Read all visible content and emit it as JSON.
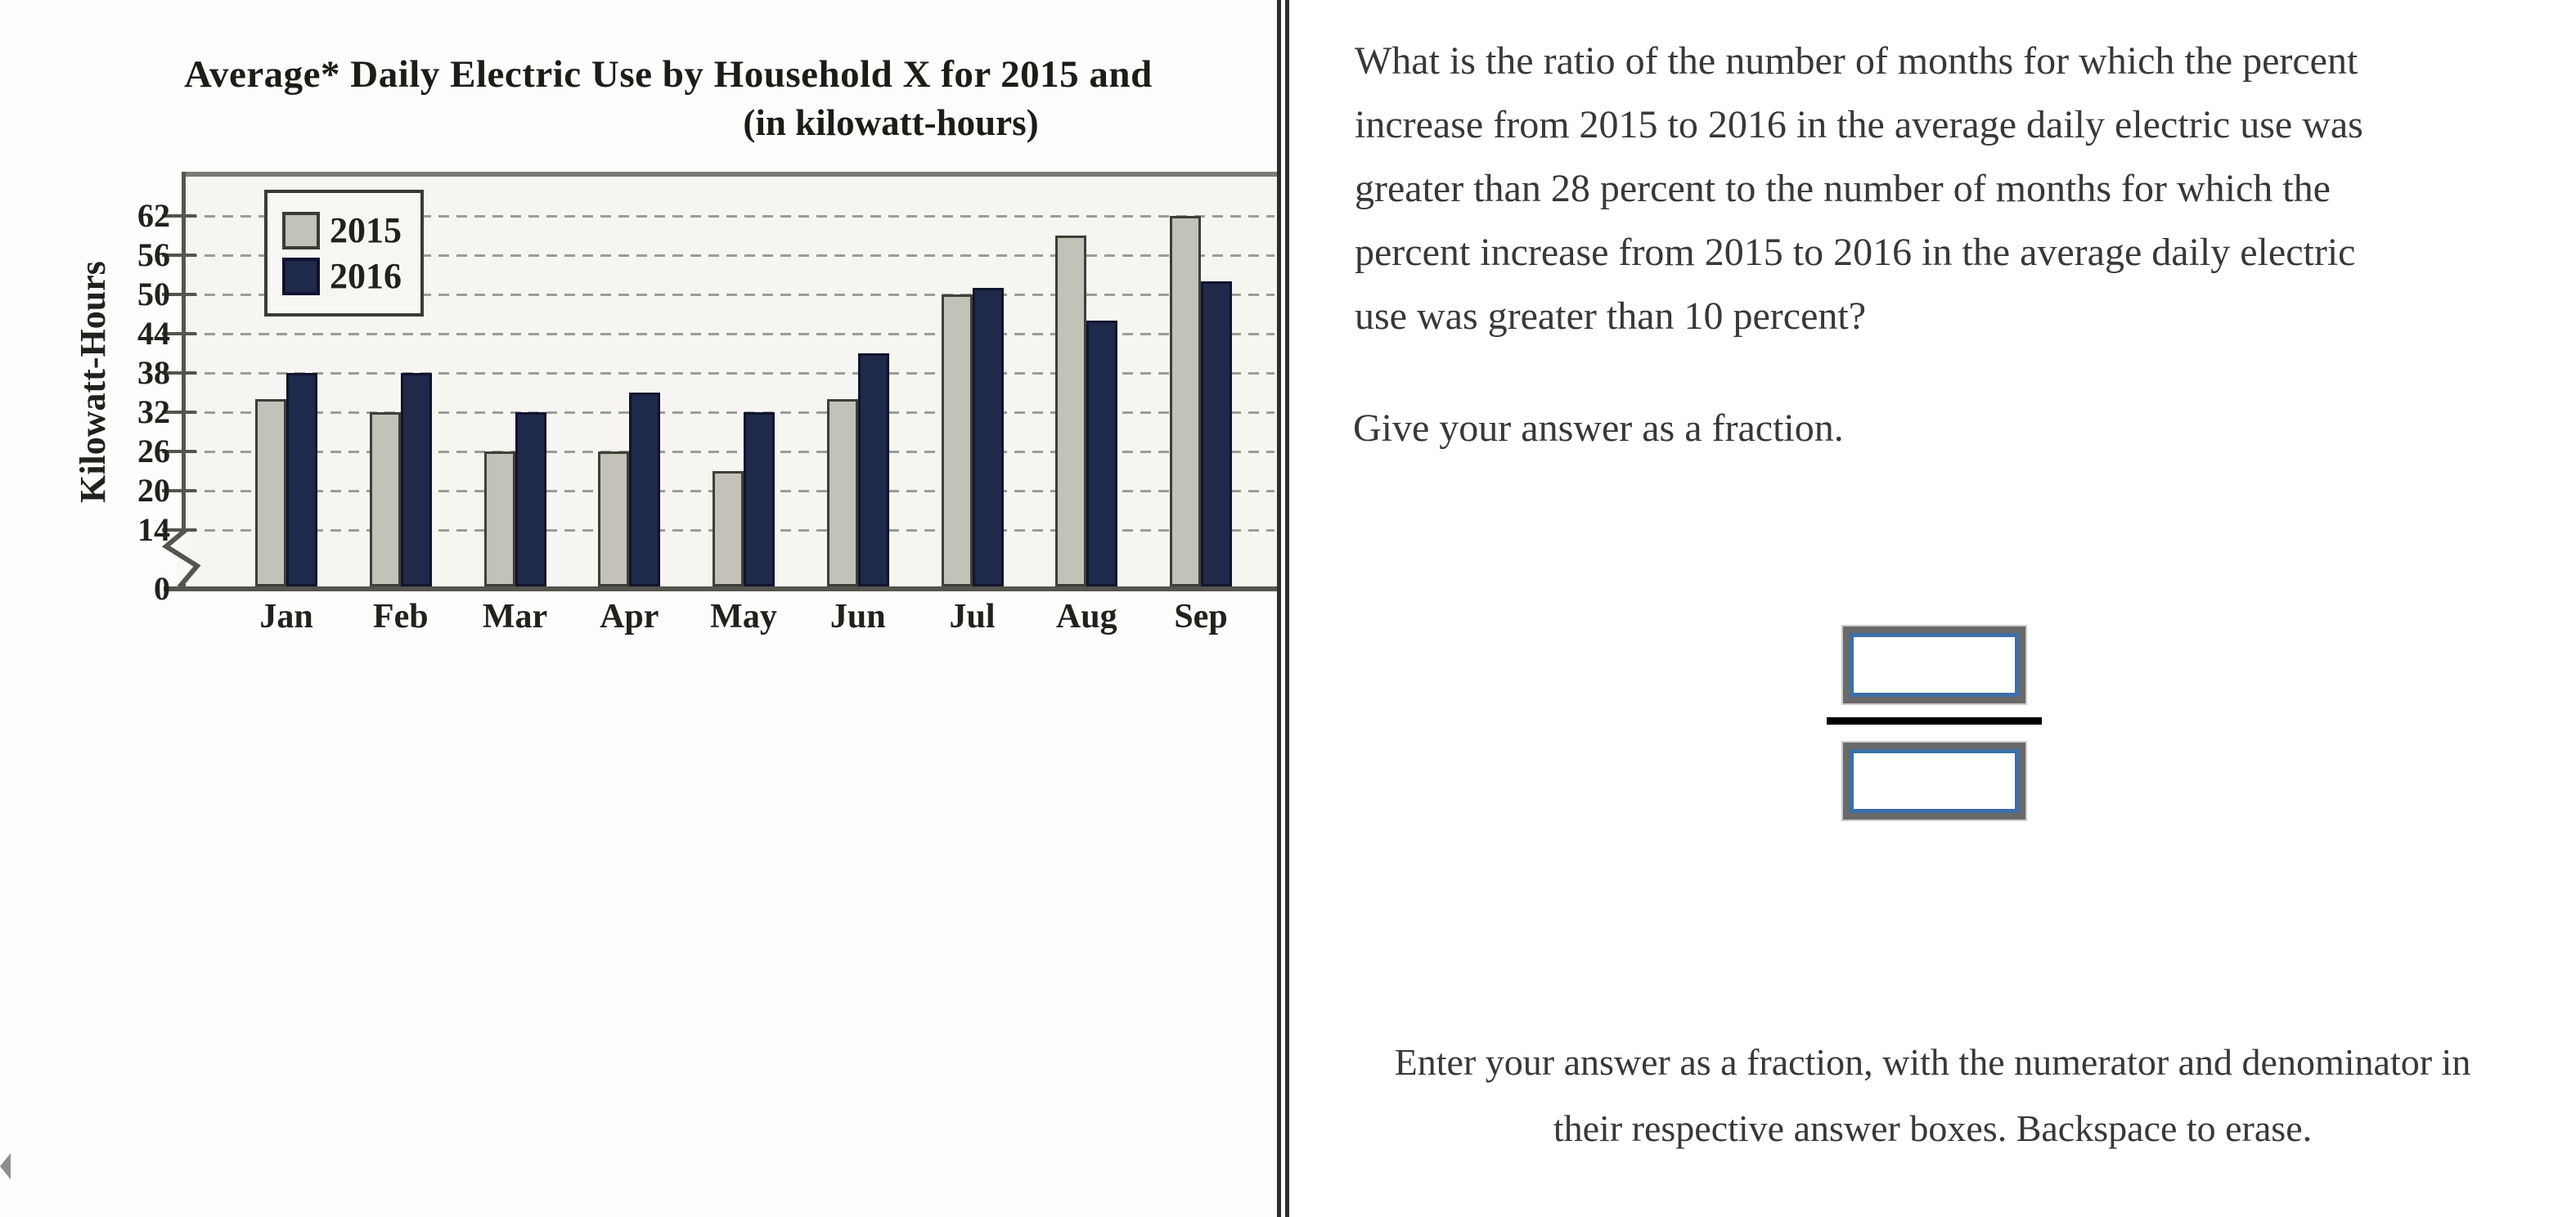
{
  "chart": {
    "title_line1": "Average* Daily Electric Use by Household X for 2015 and",
    "title_line2": "(in kilowatt-hours)",
    "y_axis_label": "Kilowatt-Hours",
    "legend": [
      {
        "label": "2015",
        "color": "#c2c2b8"
      },
      {
        "label": "2016",
        "color": "#1f2949"
      }
    ]
  },
  "chart_data": {
    "type": "bar",
    "title": "Average* Daily Electric Use by Household X for 2015 and 2016 (in kilowatt-hours)",
    "ylabel": "Kilowatt-Hours",
    "categories": [
      "Jan",
      "Feb",
      "Mar",
      "Apr",
      "May",
      "Jun",
      "Jul",
      "Aug",
      "Sep"
    ],
    "series": [
      {
        "name": "2015",
        "color": "#c2c2b8",
        "values": [
          34,
          32,
          26,
          26,
          23,
          34,
          50,
          59,
          62
        ]
      },
      {
        "name": "2016",
        "color": "#1f2949",
        "values": [
          38,
          38,
          32,
          35,
          32,
          41,
          51,
          46,
          52
        ]
      }
    ],
    "y_ticks": [
      0,
      14,
      20,
      26,
      32,
      38,
      44,
      50,
      56,
      62
    ],
    "ylim": [
      0,
      68
    ],
    "axis_break": "zigzag between 0 and 14",
    "grid": "dashed horizontal gridlines at each labeled tick",
    "legend_position": "top-left inside plot"
  },
  "question": {
    "lines": [
      "What is the ratio of the number of months for which the percent",
      "increase from 2015 to 2016 in the average daily electric use was",
      "greater than 28 percent to the number of months for which the",
      "percent increase from 2015 to 2016 in the average daily electric",
      "use was greater than 10 percent?"
    ],
    "prompt": "Give your answer as a fraction."
  },
  "answer": {
    "numerator": "",
    "denominator": ""
  },
  "instructions": {
    "line1": "Enter your answer as a fraction, with the numerator and denominator in",
    "line2": "their respective answer boxes. Backspace to erase."
  },
  "icons": {
    "previous_arrow": "left-pointing-triangle"
  },
  "colors": {
    "bar_2015": "#c2c2b8",
    "bar_2016": "#1f2949",
    "plot_background": "#f6f5f2",
    "axis": "#55544e",
    "fraction_box_outer": "#696969",
    "fraction_box_inner": "#3d6fa8",
    "divider": "#2e2e2e",
    "text": "#383838"
  }
}
